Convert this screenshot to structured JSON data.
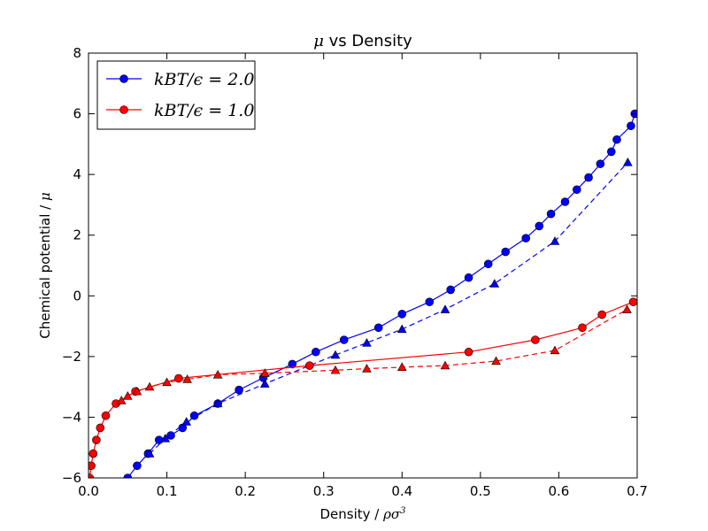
{
  "chart_data": {
    "type": "line",
    "title_parts": [
      "μ",
      " vs Density"
    ],
    "xlabel_parts": [
      "Density / ",
      "ρσ",
      "3"
    ],
    "ylabel_parts": [
      "Chemical potential / ",
      "μ"
    ],
    "xlim": [
      0.0,
      0.7
    ],
    "ylim": [
      -6,
      8
    ],
    "xticks": [
      "0.0",
      "0.1",
      "0.2",
      "0.3",
      "0.4",
      "0.5",
      "0.6",
      "0.7"
    ],
    "yticks": [
      "−6",
      "−4",
      "−2",
      "0",
      "2",
      "4",
      "6",
      "8"
    ],
    "grid": false,
    "legend_position": "upper-left",
    "series": [
      {
        "name": "k_BT/ϵ=2.0",
        "legend_label": "kBT/ϵ = 2.0",
        "color": "#0000ff",
        "style": "solid",
        "marker": "circle",
        "x": [
          0.05,
          0.062,
          0.076,
          0.09,
          0.105,
          0.12,
          0.135,
          0.165,
          0.192,
          0.223,
          0.26,
          0.29,
          0.326,
          0.37,
          0.4,
          0.435,
          0.462,
          0.485,
          0.51,
          0.532,
          0.558,
          0.575,
          0.59,
          0.608,
          0.623,
          0.638,
          0.653,
          0.667,
          0.674,
          0.692,
          0.697
        ],
        "y": [
          -6.0,
          -5.6,
          -5.2,
          -4.75,
          -4.6,
          -4.35,
          -3.95,
          -3.55,
          -3.1,
          -2.7,
          -2.25,
          -1.85,
          -1.45,
          -1.05,
          -0.6,
          -0.2,
          0.2,
          0.6,
          1.05,
          1.45,
          1.9,
          2.3,
          2.7,
          3.1,
          3.5,
          3.9,
          4.35,
          4.75,
          5.15,
          5.6,
          6.0
        ]
      },
      {
        "name": "k_BT/ϵ=2.0 (dashed)",
        "color": "#0000ff",
        "style": "dashed",
        "marker": "triangle",
        "x": [
          0.078,
          0.098,
          0.125,
          0.165,
          0.225,
          0.315,
          0.355,
          0.4,
          0.455,
          0.518,
          0.595,
          0.688
        ],
        "y": [
          -5.2,
          -4.7,
          -4.15,
          -3.55,
          -2.9,
          -1.95,
          -1.55,
          -1.1,
          -0.45,
          0.4,
          1.8,
          4.4
        ]
      },
      {
        "name": "k_BT/ϵ=1.0",
        "legend_label": "kBT/ϵ = 1.0",
        "color": "#ff0000",
        "style": "solid",
        "marker": "circle",
        "x": [
          0.0015,
          0.0035,
          0.006,
          0.01,
          0.015,
          0.022,
          0.035,
          0.06,
          0.115,
          0.282,
          0.485,
          0.57,
          0.63,
          0.655,
          0.695
        ],
        "y": [
          -6.0,
          -5.6,
          -5.2,
          -4.75,
          -4.35,
          -3.95,
          -3.55,
          -3.15,
          -2.72,
          -2.3,
          -1.85,
          -1.45,
          -1.05,
          -0.62,
          -0.2
        ]
      },
      {
        "name": "k_BT/ϵ=1.0 (dashed)",
        "color": "#ff0000",
        "style": "dashed",
        "marker": "triangle",
        "x": [
          0.042,
          0.05,
          0.062,
          0.078,
          0.1,
          0.126,
          0.165,
          0.225,
          0.315,
          0.355,
          0.4,
          0.455,
          0.52,
          0.595,
          0.687
        ],
        "y": [
          -3.45,
          -3.3,
          -3.15,
          -3.0,
          -2.85,
          -2.75,
          -2.6,
          -2.55,
          -2.45,
          -2.4,
          -2.35,
          -2.3,
          -2.15,
          -1.8,
          -0.45
        ]
      }
    ]
  }
}
